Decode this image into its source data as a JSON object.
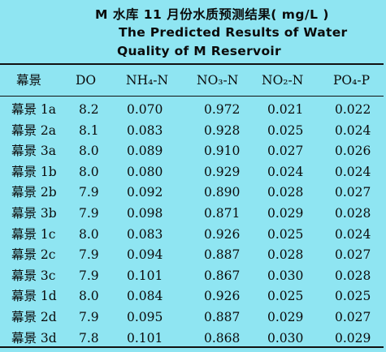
{
  "title": {
    "zh": "M 水库 11 月份水质预测结果( mg/L )",
    "en_line1": "The Predicted Results of Water",
    "en_line2": "Quality of M Reservoir"
  },
  "table": {
    "headers": [
      "幕景",
      "DO",
      "NH₄-N",
      "NO₃-N",
      "NO₂-N",
      "PO₄-P"
    ],
    "rows": [
      [
        "幕景 1a",
        "8.2",
        "0.070",
        "0.972",
        "0.021",
        "0.022"
      ],
      [
        "幕景 2a",
        "8.1",
        "0.083",
        "0.928",
        "0.025",
        "0.024"
      ],
      [
        "幕景 3a",
        "8.0",
        "0.089",
        "0.910",
        "0.027",
        "0.026"
      ],
      [
        "幕景 1b",
        "8.0",
        "0.080",
        "0.929",
        "0.024",
        "0.024"
      ],
      [
        "幕景 2b",
        "7.9",
        "0.092",
        "0.890",
        "0.028",
        "0.027"
      ],
      [
        "幕景 3b",
        "7.9",
        "0.098",
        "0.871",
        "0.029",
        "0.028"
      ],
      [
        "幕景 1c",
        "8.0",
        "0.083",
        "0.926",
        "0.025",
        "0.024"
      ],
      [
        "幕景 2c",
        "7.9",
        "0.094",
        "0.887",
        "0.028",
        "0.027"
      ],
      [
        "幕景 3c",
        "7.9",
        "0.101",
        "0.867",
        "0.030",
        "0.028"
      ],
      [
        "幕景 1d",
        "8.0",
        "0.084",
        "0.926",
        "0.025",
        "0.025"
      ],
      [
        "幕景 2d",
        "7.9",
        "0.095",
        "0.887",
        "0.029",
        "0.027"
      ],
      [
        "幕景 3d",
        "7.8",
        "0.101",
        "0.868",
        "0.030",
        "0.029"
      ]
    ]
  },
  "colors": {
    "background": "#8fe5f2",
    "text": "#0b0b0b",
    "rule": "#111111"
  }
}
